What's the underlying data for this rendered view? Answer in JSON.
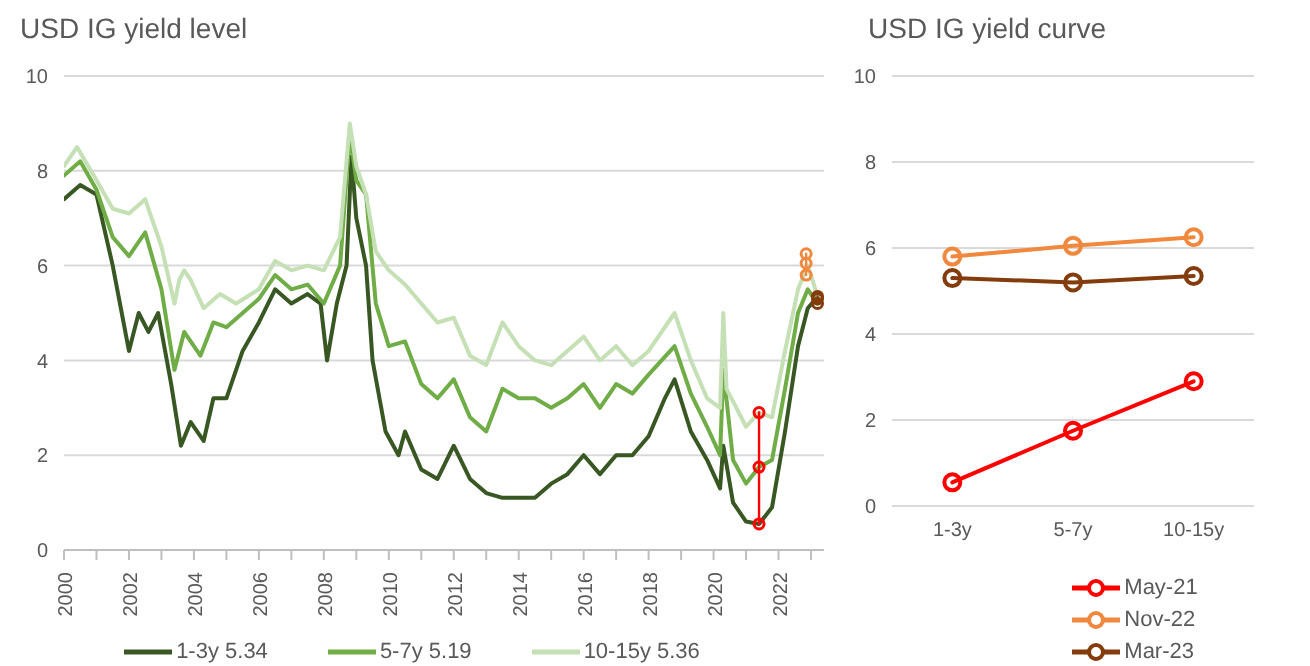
{
  "chart_data": [
    {
      "type": "line",
      "title": "USD IG yield level",
      "xlim": [
        2000,
        2023.4
      ],
      "ylim": [
        0,
        10
      ],
      "yticks": [
        0,
        2,
        4,
        6,
        8,
        10
      ],
      "xticks": [
        2000,
        {
          "value": 2001,
          "label": null
        },
        2002,
        {
          "value": 2003,
          "label": null
        },
        2004,
        {
          "value": 2005,
          "label": null
        },
        2006,
        {
          "value": 2007,
          "label": null
        },
        2008,
        {
          "value": 2009,
          "label": null
        },
        2010,
        {
          "value": 2011,
          "label": null
        },
        2012,
        {
          "value": 2013,
          "label": null
        },
        2014,
        {
          "value": 2015,
          "label": null
        },
        2016,
        {
          "value": 2017,
          "label": null
        },
        2018,
        {
          "value": 2019,
          "label": null
        },
        2020,
        {
          "value": 2021,
          "label": null
        },
        2022,
        {
          "value": 2023,
          "label": null
        }
      ],
      "grid": "y",
      "legend": "bottom",
      "marker": "none",
      "line_style": "solid",
      "series": [
        {
          "name": "1-3y 5.34",
          "color": "#385723",
          "x": [
            2000,
            2000.5,
            2001,
            2001.5,
            2002,
            2002.3,
            2002.6,
            2002.9,
            2003.3,
            2003.6,
            2003.9,
            2004.3,
            2004.6,
            2005,
            2005.5,
            2006,
            2006.5,
            2007,
            2007.5,
            2007.9,
            2008.1,
            2008.4,
            2008.7,
            2008.85,
            2009,
            2009.3,
            2009.5,
            2009.9,
            2010.3,
            2010.5,
            2011,
            2011.5,
            2012,
            2012.5,
            2013,
            2013.5,
            2014,
            2014.5,
            2015,
            2015.5,
            2016,
            2016.5,
            2017,
            2017.5,
            2018,
            2018.5,
            2018.8,
            2019.3,
            2019.8,
            2020.2,
            2020.3,
            2020.6,
            2021,
            2021.4,
            2021.8,
            2022.2,
            2022.6,
            2022.9,
            2023.2
          ],
          "values": [
            7.4,
            7.7,
            7.5,
            6.0,
            4.2,
            5.0,
            4.6,
            5.0,
            3.5,
            2.2,
            2.7,
            2.3,
            3.2,
            3.2,
            4.2,
            4.8,
            5.5,
            5.2,
            5.4,
            5.2,
            4.0,
            5.2,
            6.0,
            8.3,
            7.0,
            6.0,
            4.0,
            2.5,
            2.0,
            2.5,
            1.7,
            1.5,
            2.2,
            1.5,
            1.2,
            1.1,
            1.1,
            1.1,
            1.4,
            1.6,
            2.0,
            1.6,
            2.0,
            2.0,
            2.4,
            3.2,
            3.6,
            2.5,
            1.9,
            1.3,
            2.2,
            1.0,
            0.6,
            0.55,
            0.9,
            2.5,
            4.3,
            5.1,
            5.34
          ]
        },
        {
          "name": "5-7y 5.19",
          "color": "#70ad47",
          "x": [
            2000,
            2000.5,
            2001,
            2001.5,
            2002,
            2002.5,
            2003,
            2003.4,
            2003.7,
            2004.2,
            2004.6,
            2005,
            2005.5,
            2006,
            2006.5,
            2007,
            2007.5,
            2008,
            2008.5,
            2008.8,
            2009,
            2009.3,
            2009.6,
            2010,
            2010.5,
            2011,
            2011.5,
            2012,
            2012.5,
            2013,
            2013.5,
            2014,
            2014.5,
            2015,
            2015.5,
            2016,
            2016.5,
            2017,
            2017.5,
            2018,
            2018.8,
            2019.3,
            2019.8,
            2020.2,
            2020.3,
            2020.6,
            2021,
            2021.4,
            2021.8,
            2022.2,
            2022.6,
            2022.9,
            2023.2
          ],
          "values": [
            7.9,
            8.2,
            7.6,
            6.6,
            6.2,
            6.7,
            5.5,
            3.8,
            4.6,
            4.1,
            4.8,
            4.7,
            5.0,
            5.3,
            5.8,
            5.5,
            5.6,
            5.2,
            6.0,
            8.8,
            7.8,
            7.5,
            5.2,
            4.3,
            4.4,
            3.5,
            3.2,
            3.6,
            2.8,
            2.5,
            3.4,
            3.2,
            3.2,
            3.0,
            3.2,
            3.5,
            3.0,
            3.5,
            3.3,
            3.7,
            4.3,
            3.3,
            2.6,
            2.0,
            3.8,
            1.9,
            1.4,
            1.75,
            1.9,
            3.4,
            5.0,
            5.5,
            5.19
          ]
        },
        {
          "name": "10-15y 5.36",
          "color": "#c5e0b4",
          "x": [
            2000,
            2000.4,
            2001,
            2001.5,
            2002,
            2002.5,
            2003,
            2003.4,
            2003.55,
            2003.7,
            2003.9,
            2004.3,
            2004.8,
            2005.3,
            2006,
            2006.5,
            2007,
            2007.5,
            2008,
            2008.5,
            2008.8,
            2009,
            2009.3,
            2009.6,
            2010,
            2010.5,
            2011,
            2011.5,
            2012,
            2012.5,
            2013,
            2013.5,
            2014,
            2014.5,
            2015,
            2015.5,
            2016,
            2016.5,
            2017,
            2017.5,
            2018,
            2018.8,
            2019.3,
            2019.8,
            2020.2,
            2020.3,
            2020.4,
            2021,
            2021.4,
            2021.8,
            2022.2,
            2022.6,
            2022.9,
            2023.2
          ],
          "values": [
            8.1,
            8.5,
            7.8,
            7.2,
            7.1,
            7.4,
            6.4,
            5.2,
            5.7,
            5.9,
            5.7,
            5.1,
            5.4,
            5.2,
            5.5,
            6.1,
            5.9,
            6.0,
            5.9,
            6.6,
            9.0,
            8.1,
            7.5,
            6.3,
            5.9,
            5.6,
            5.2,
            4.8,
            4.9,
            4.1,
            3.9,
            4.8,
            4.3,
            4.0,
            3.9,
            4.2,
            4.5,
            4.0,
            4.3,
            3.9,
            4.2,
            5.0,
            4.0,
            3.2,
            3.0,
            5.0,
            3.4,
            2.6,
            2.9,
            2.8,
            4.2,
            5.5,
            6.0,
            5.36
          ]
        },
        {
          "color": "#ff0000",
          "marker": "circle",
          "x": [
            2021.4,
            2021.4,
            2021.4
          ],
          "values": [
            0.55,
            1.75,
            2.9
          ]
        },
        {
          "color": "#f0883e",
          "marker": "circle",
          "x": [
            2022.85,
            2022.85,
            2022.85
          ],
          "values": [
            5.8,
            6.05,
            6.25
          ]
        },
        {
          "color": "#843c0c",
          "marker": "circle",
          "x": [
            2023.2,
            2023.2,
            2023.2
          ],
          "values": [
            5.3,
            5.2,
            5.35
          ]
        }
      ]
    },
    {
      "type": "line",
      "title": "USD IG yield curve",
      "categories": [
        "1-3y",
        "5-7y",
        "10-15y"
      ],
      "ylim": [
        0,
        10
      ],
      "yticks": [
        0,
        2,
        4,
        6,
        8,
        10
      ],
      "grid": "y",
      "legend": "bottom",
      "marker": "circle",
      "line_style": "solid",
      "series": [
        {
          "name": "May-21",
          "color": "#ff0000",
          "values": [
            0.55,
            1.75,
            2.9
          ]
        },
        {
          "name": "Nov-22",
          "color": "#f0883e",
          "values": [
            5.8,
            6.05,
            6.25
          ]
        },
        {
          "name": "Mar-23",
          "color": "#843c0c",
          "values": [
            5.3,
            5.2,
            5.35
          ]
        }
      ]
    }
  ]
}
